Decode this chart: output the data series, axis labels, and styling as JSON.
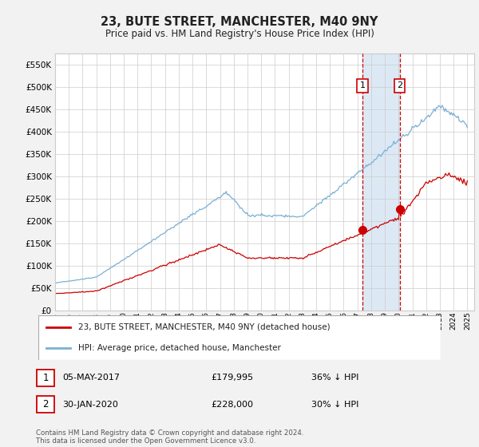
{
  "title": "23, BUTE STREET, MANCHESTER, M40 9NY",
  "subtitle": "Price paid vs. HM Land Registry's House Price Index (HPI)",
  "legend_line1": "23, BUTE STREET, MANCHESTER, M40 9NY (detached house)",
  "legend_line2": "HPI: Average price, detached house, Manchester",
  "annotation1_label": "1",
  "annotation1_date": "05-MAY-2017",
  "annotation1_price": 179995,
  "annotation2_label": "2",
  "annotation2_date": "30-JAN-2020",
  "annotation2_price": 228000,
  "row1_date": "05-MAY-2017",
  "row1_price": "£179,995",
  "row1_hpi": "36% ↓ HPI",
  "row2_date": "30-JAN-2020",
  "row2_price": "£228,000",
  "row2_hpi": "30% ↓ HPI",
  "footer": "Contains HM Land Registry data © Crown copyright and database right 2024.\nThis data is licensed under the Open Government Licence v3.0.",
  "red_color": "#cc0000",
  "blue_color": "#7ab0d4",
  "background_color": "#f2f2f2",
  "plot_bg_color": "#ffffff",
  "highlight_bg": "#dce9f5",
  "grid_color": "#cccccc",
  "ylim": [
    0,
    575000
  ],
  "yticks": [
    0,
    50000,
    100000,
    150000,
    200000,
    250000,
    300000,
    350000,
    400000,
    450000,
    500000,
    550000
  ],
  "date1_num": 2017.37,
  "date2_num": 2020.08,
  "xmin": 1995.0,
  "xmax": 2025.5
}
